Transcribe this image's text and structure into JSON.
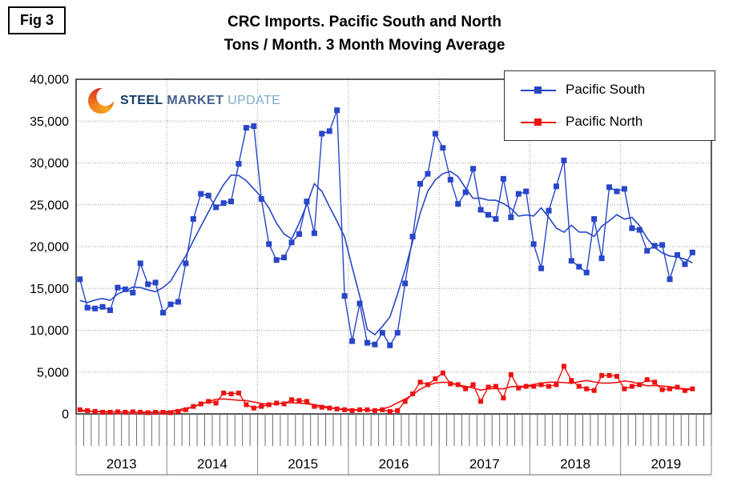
{
  "figure_label": "Fig 3",
  "logo": {
    "steel": "STEEL",
    "market": "MARKET",
    "update": "UPDATE"
  },
  "chart_data": {
    "type": "line",
    "title": "CRC Imports. Pacific South and North",
    "subtitle": "Tons / Month. 3 Month Moving Average",
    "ylabel": "Tons per month",
    "ylim": [
      0,
      40000
    ],
    "ytick_step": 5000,
    "grid": true,
    "legend_position": "top-right",
    "moving_average": "3 Month Moving Average trend line per series",
    "x_axis": {
      "unit": "month",
      "years": [
        2013,
        2014,
        2015,
        2016,
        2017,
        2018,
        2019
      ],
      "start": "2013-01",
      "end": "2019-10"
    },
    "series": [
      {
        "name": "Pacific South",
        "color": "#2846C8",
        "values": [
          16100,
          12700,
          12600,
          12800,
          12400,
          15100,
          14900,
          14500,
          18000,
          15500,
          15700,
          12100,
          13100,
          13400,
          18000,
          23300,
          26300,
          26100,
          24700,
          25200,
          25400,
          29900,
          34200,
          34400,
          25700,
          20300,
          18400,
          18700,
          20500,
          21500,
          25400,
          21600,
          33500,
          33800,
          36300,
          14100,
          8700,
          13200,
          8500,
          8300,
          9700,
          8200,
          9700,
          15600,
          21200,
          27500,
          28700,
          33500,
          31800,
          28000,
          25100,
          26500,
          29300,
          24400,
          23800,
          23300,
          28100,
          23500,
          26300,
          26600,
          20300,
          17400,
          24300,
          27200,
          30300,
          18300,
          17600,
          16900,
          23300,
          18600,
          27100,
          26600,
          26900,
          22200,
          22000,
          19500,
          20100,
          20200,
          16100,
          19000,
          17900,
          19300
        ]
      },
      {
        "name": "Pacific North",
        "color": "#EE1111",
        "values": [
          500,
          400,
          300,
          200,
          200,
          250,
          200,
          250,
          200,
          150,
          200,
          200,
          150,
          300,
          500,
          900,
          1200,
          1500,
          1300,
          2500,
          2400,
          2500,
          1100,
          700,
          900,
          1100,
          1300,
          1200,
          1700,
          1600,
          1500,
          900,
          800,
          700,
          600,
          500,
          400,
          500,
          500,
          400,
          500,
          300,
          400,
          1500,
          2400,
          3800,
          3500,
          4200,
          4900,
          3600,
          3500,
          3000,
          3500,
          1500,
          3200,
          3300,
          1900,
          4700,
          3100,
          3300,
          3300,
          3500,
          3300,
          3500,
          5700,
          4000,
          3300,
          3000,
          2800,
          4600,
          4600,
          4500,
          3000,
          3300,
          3500,
          4100,
          3800,
          2900,
          3000,
          3200,
          2800,
          3000
        ]
      }
    ]
  }
}
